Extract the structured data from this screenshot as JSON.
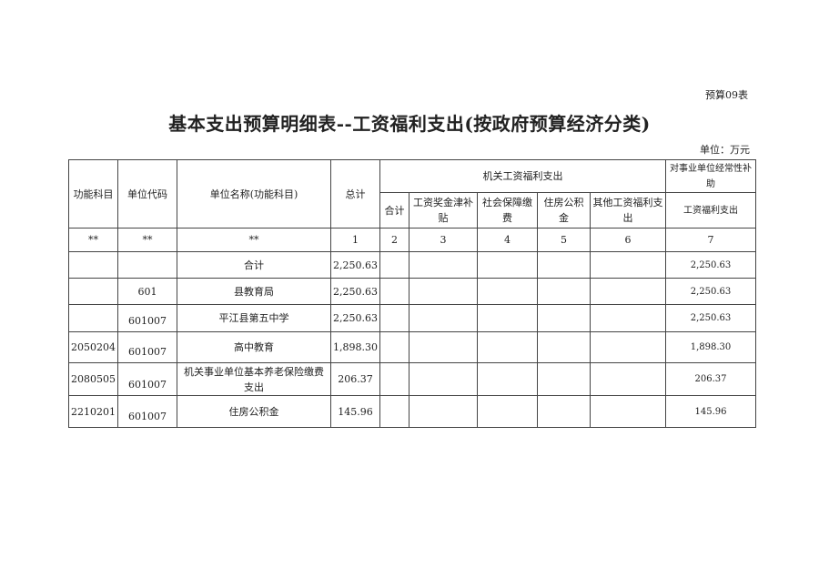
{
  "form_no": "预算09表",
  "title": "基本支出预算明细表--工资福利支出(按政府预算经济分类)",
  "unit": "单位：万元",
  "header": {
    "func": "功能科目",
    "unit_code": "单位代码",
    "unit_name": "单位名称(功能科目)",
    "total": "总计",
    "group1": "机关工资福利支出",
    "group2": "对事业单位经常性补助",
    "sub": [
      "合计",
      "工资奖金津补贴",
      "社会保障缴费",
      "住房公积金",
      "其他工资福利支出"
    ],
    "sub_g2": "工资福利支出"
  },
  "index_row": [
    "**",
    "**",
    "**",
    "1",
    "2",
    "3",
    "4",
    "5",
    "6",
    "7"
  ],
  "rows": [
    {
      "func": "",
      "code": "",
      "name": "合计",
      "total": "2,250.63",
      "c7": "2,250.63"
    },
    {
      "func": "",
      "code": "601",
      "name": "县教育局",
      "total": "2,250.63",
      "c7": "2,250.63"
    },
    {
      "func": "",
      "code": "601007",
      "name": "平江县第五中学",
      "total": "2,250.63",
      "c7": "2,250.63"
    },
    {
      "func": "2050204",
      "code": "601007",
      "name": "高中教育",
      "total": "1,898.30",
      "c7": "1,898.30"
    },
    {
      "func": "2080505",
      "code": "601007",
      "name": "机关事业单位基本养老保险缴费支出",
      "total": "206.37",
      "c7": "206.37"
    },
    {
      "func": "2210201",
      "code": "601007",
      "name": "住房公积金",
      "total": "145.96",
      "c7": "145.96"
    }
  ]
}
